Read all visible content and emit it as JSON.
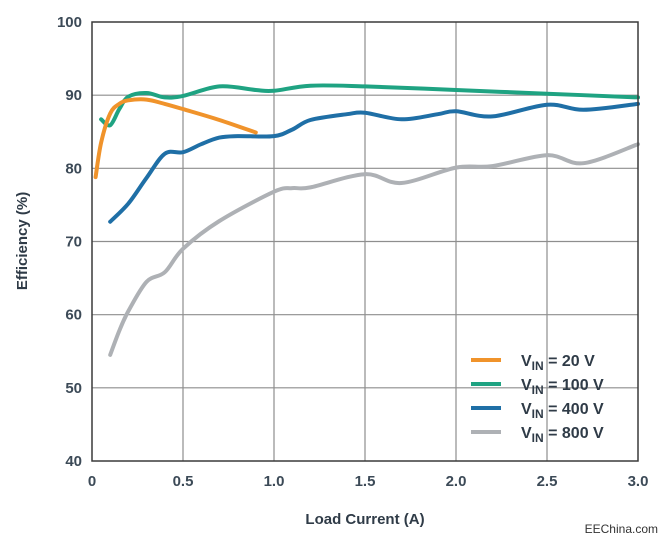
{
  "chart_data": {
    "type": "line",
    "xlabel": "Load Current (A)",
    "ylabel": "Efficiency (%)",
    "xlim": [
      0,
      3.0
    ],
    "ylim": [
      40,
      100
    ],
    "xticks": [
      "0",
      "0.5",
      "1.0",
      "1.5",
      "2.0",
      "2.5",
      "3.0"
    ],
    "yticks": [
      "40",
      "50",
      "60",
      "70",
      "80",
      "90",
      "100"
    ],
    "grid": true,
    "legend_position": "bottom-right",
    "series": [
      {
        "name": "V_IN = 20 V",
        "label_main": "V",
        "label_sub": "IN",
        "label_rest": " = 20 V",
        "color": "#f0932b",
        "x": [
          0.02,
          0.05,
          0.1,
          0.15,
          0.2,
          0.3,
          0.4,
          0.5,
          0.7,
          0.9
        ],
        "y": [
          78.8,
          83.5,
          87.5,
          88.8,
          89.3,
          89.4,
          88.8,
          88.1,
          86.6,
          84.9
        ]
      },
      {
        "name": "V_IN = 100 V",
        "label_main": "V",
        "label_sub": "IN",
        "label_rest": " = 100 V",
        "color": "#1fa382",
        "x": [
          0.05,
          0.1,
          0.15,
          0.2,
          0.3,
          0.4,
          0.5,
          0.7,
          0.9,
          1.0,
          1.2,
          1.5,
          2.0,
          2.5,
          3.0
        ],
        "y": [
          86.7,
          85.9,
          88.1,
          89.8,
          90.3,
          89.7,
          89.9,
          91.2,
          90.7,
          90.6,
          91.3,
          91.2,
          90.7,
          90.2,
          89.7
        ]
      },
      {
        "name": "V_IN = 400 V",
        "label_main": "V",
        "label_sub": "IN",
        "label_rest": " = 400 V",
        "color": "#1f6fa6",
        "x": [
          0.1,
          0.2,
          0.3,
          0.4,
          0.5,
          0.6,
          0.7,
          0.8,
          1.0,
          1.1,
          1.2,
          1.4,
          1.5,
          1.7,
          1.9,
          2.0,
          2.2,
          2.5,
          2.7,
          3.0
        ],
        "y": [
          72.7,
          75.2,
          78.7,
          82.0,
          82.2,
          83.3,
          84.2,
          84.4,
          84.4,
          85.3,
          86.6,
          87.4,
          87.6,
          86.7,
          87.4,
          87.8,
          87.1,
          88.7,
          88.0,
          88.8
        ]
      },
      {
        "name": "V_IN = 800 V",
        "label_main": "V",
        "label_sub": "IN",
        "label_rest": " = 800 V",
        "color": "#aeb1b5",
        "x": [
          0.1,
          0.15,
          0.2,
          0.3,
          0.4,
          0.5,
          0.7,
          1.0,
          1.1,
          1.2,
          1.5,
          1.7,
          2.0,
          2.2,
          2.5,
          2.7,
          3.0
        ],
        "y": [
          54.5,
          57.8,
          60.5,
          64.5,
          65.8,
          69.0,
          72.8,
          76.8,
          77.3,
          77.4,
          79.2,
          78.0,
          80.1,
          80.3,
          81.8,
          80.7,
          83.3
        ]
      }
    ]
  },
  "watermark": "EEChina.com"
}
